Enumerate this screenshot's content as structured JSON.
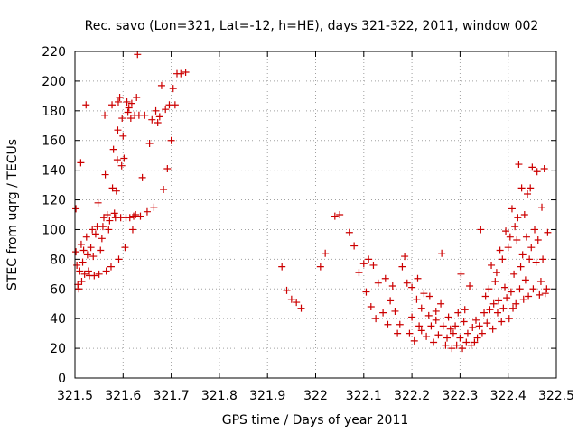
{
  "chart_data": {
    "type": "scatter",
    "title": "Rec. savo (Lon=321, Lat=-12, h=HE), days 321-322, 2011, window 002",
    "xlabel": "GPS time / Days of year 2011",
    "ylabel": "STEC from uqrg / TECUs",
    "xlim": [
      321.5,
      322.5
    ],
    "ylim": [
      0,
      220
    ],
    "grid": true,
    "marker": "+",
    "marker_color": "#cc0000",
    "x_ticks": [
      {
        "value": 321.5,
        "label": "321.5"
      },
      {
        "value": 321.6,
        "label": "321.6"
      },
      {
        "value": 321.7,
        "label": "321.7"
      },
      {
        "value": 321.8,
        "label": "321.8"
      },
      {
        "value": 321.9,
        "label": "321.9"
      },
      {
        "value": 322.0,
        "label": "322"
      },
      {
        "value": 322.1,
        "label": "322.1"
      },
      {
        "value": 322.2,
        "label": "322.2"
      },
      {
        "value": 322.3,
        "label": "322.3"
      },
      {
        "value": 322.4,
        "label": "322.4"
      },
      {
        "value": 322.5,
        "label": "322.5"
      }
    ],
    "y_ticks": [
      {
        "value": 0,
        "label": "0"
      },
      {
        "value": 20,
        "label": "20"
      },
      {
        "value": 40,
        "label": "40"
      },
      {
        "value": 60,
        "label": "60"
      },
      {
        "value": 80,
        "label": "80"
      },
      {
        "value": 100,
        "label": "100"
      },
      {
        "value": 120,
        "label": "120"
      },
      {
        "value": 140,
        "label": "140"
      },
      {
        "value": 160,
        "label": "160"
      },
      {
        "value": 180,
        "label": "180"
      },
      {
        "value": 200,
        "label": "200"
      },
      {
        "value": 220,
        "label": "220"
      }
    ],
    "points": [
      [
        321.502,
        114
      ],
      [
        321.502,
        85
      ],
      [
        321.504,
        76
      ],
      [
        321.506,
        63
      ],
      [
        321.508,
        60
      ],
      [
        321.51,
        72
      ],
      [
        321.512,
        145
      ],
      [
        321.513,
        90
      ],
      [
        321.514,
        65
      ],
      [
        321.516,
        78
      ],
      [
        321.518,
        86
      ],
      [
        321.52,
        70
      ],
      [
        321.523,
        184
      ],
      [
        321.524,
        95
      ],
      [
        321.526,
        83
      ],
      [
        321.528,
        72
      ],
      [
        321.53,
        69
      ],
      [
        321.533,
        88
      ],
      [
        321.536,
        100
      ],
      [
        321.538,
        82
      ],
      [
        321.54,
        69
      ],
      [
        321.543,
        97
      ],
      [
        321.546,
        102
      ],
      [
        321.548,
        118
      ],
      [
        321.55,
        70
      ],
      [
        321.553,
        86
      ],
      [
        321.556,
        94
      ],
      [
        321.558,
        102
      ],
      [
        321.56,
        108
      ],
      [
        321.562,
        177
      ],
      [
        321.563,
        137
      ],
      [
        321.565,
        72
      ],
      [
        321.567,
        110
      ],
      [
        321.57,
        100
      ],
      [
        321.572,
        106
      ],
      [
        321.575,
        75
      ],
      [
        321.577,
        184
      ],
      [
        321.578,
        128
      ],
      [
        321.58,
        154
      ],
      [
        321.582,
        111
      ],
      [
        321.584,
        108
      ],
      [
        321.586,
        126
      ],
      [
        321.588,
        147
      ],
      [
        321.589,
        167
      ],
      [
        321.59,
        186
      ],
      [
        321.591,
        80
      ],
      [
        321.593,
        189
      ],
      [
        321.595,
        108
      ],
      [
        321.597,
        143
      ],
      [
        321.598,
        175
      ],
      [
        321.6,
        163
      ],
      [
        321.602,
        148
      ],
      [
        321.604,
        88
      ],
      [
        321.606,
        108
      ],
      [
        321.608,
        186
      ],
      [
        321.61,
        179
      ],
      [
        321.612,
        182
      ],
      [
        321.614,
        108
      ],
      [
        321.616,
        175
      ],
      [
        321.618,
        185
      ],
      [
        321.62,
        100
      ],
      [
        321.622,
        109
      ],
      [
        321.624,
        177
      ],
      [
        321.626,
        110
      ],
      [
        321.628,
        189
      ],
      [
        321.63,
        218
      ],
      [
        321.633,
        177
      ],
      [
        321.636,
        109
      ],
      [
        321.64,
        135
      ],
      [
        321.645,
        177
      ],
      [
        321.65,
        112
      ],
      [
        321.655,
        158
      ],
      [
        321.66,
        174
      ],
      [
        321.664,
        115
      ],
      [
        321.668,
        180
      ],
      [
        321.672,
        172
      ],
      [
        321.676,
        176
      ],
      [
        321.68,
        197
      ],
      [
        321.684,
        127
      ],
      [
        321.688,
        181
      ],
      [
        321.692,
        141
      ],
      [
        321.696,
        184
      ],
      [
        321.7,
        160
      ],
      [
        321.704,
        195
      ],
      [
        321.708,
        184
      ],
      [
        321.712,
        205
      ],
      [
        321.72,
        205
      ],
      [
        321.73,
        206
      ],
      [
        321.93,
        75
      ],
      [
        321.94,
        59
      ],
      [
        321.95,
        53
      ],
      [
        321.96,
        51
      ],
      [
        321.97,
        47
      ],
      [
        322.01,
        75
      ],
      [
        322.02,
        84
      ],
      [
        322.04,
        109
      ],
      [
        322.05,
        110
      ],
      [
        322.07,
        98
      ],
      [
        322.08,
        89
      ],
      [
        322.09,
        71
      ],
      [
        322.1,
        77
      ],
      [
        322.105,
        58
      ],
      [
        322.11,
        80
      ],
      [
        322.115,
        48
      ],
      [
        322.12,
        76
      ],
      [
        322.125,
        40
      ],
      [
        322.13,
        64
      ],
      [
        322.14,
        44
      ],
      [
        322.145,
        67
      ],
      [
        322.15,
        36
      ],
      [
        322.155,
        52
      ],
      [
        322.16,
        62
      ],
      [
        322.165,
        45
      ],
      [
        322.17,
        30
      ],
      [
        322.175,
        36
      ],
      [
        322.18,
        75
      ],
      [
        322.185,
        82
      ],
      [
        322.19,
        64
      ],
      [
        322.195,
        30
      ],
      [
        322.2,
        41
      ],
      [
        322.2,
        61
      ],
      [
        322.205,
        25
      ],
      [
        322.21,
        53
      ],
      [
        322.212,
        67
      ],
      [
        322.215,
        35
      ],
      [
        322.22,
        47
      ],
      [
        322.22,
        32
      ],
      [
        322.225,
        57
      ],
      [
        322.23,
        28
      ],
      [
        322.235,
        42
      ],
      [
        322.237,
        55
      ],
      [
        322.24,
        35
      ],
      [
        322.245,
        24
      ],
      [
        322.25,
        39
      ],
      [
        322.25,
        45
      ],
      [
        322.255,
        29
      ],
      [
        322.26,
        50
      ],
      [
        322.262,
        84
      ],
      [
        322.265,
        35
      ],
      [
        322.27,
        22
      ],
      [
        322.273,
        27
      ],
      [
        322.276,
        41
      ],
      [
        322.28,
        33
      ],
      [
        322.283,
        20
      ],
      [
        322.286,
        30
      ],
      [
        322.29,
        35
      ],
      [
        322.293,
        22
      ],
      [
        322.296,
        44
      ],
      [
        322.3,
        27
      ],
      [
        322.302,
        70
      ],
      [
        322.305,
        20
      ],
      [
        322.308,
        38
      ],
      [
        322.31,
        46
      ],
      [
        322.313,
        24
      ],
      [
        322.316,
        30
      ],
      [
        322.32,
        62
      ],
      [
        322.323,
        22
      ],
      [
        322.326,
        34
      ],
      [
        322.33,
        24
      ],
      [
        322.333,
        39
      ],
      [
        322.336,
        27
      ],
      [
        322.34,
        35
      ],
      [
        322.343,
        100
      ],
      [
        322.346,
        30
      ],
      [
        322.35,
        44
      ],
      [
        322.353,
        55
      ],
      [
        322.356,
        37
      ],
      [
        322.36,
        60
      ],
      [
        322.362,
        46
      ],
      [
        322.365,
        76
      ],
      [
        322.368,
        33
      ],
      [
        322.37,
        50
      ],
      [
        322.373,
        65
      ],
      [
        322.376,
        71
      ],
      [
        322.378,
        44
      ],
      [
        322.38,
        52
      ],
      [
        322.383,
        86
      ],
      [
        322.386,
        38
      ],
      [
        322.388,
        80
      ],
      [
        322.39,
        47
      ],
      [
        322.393,
        61
      ],
      [
        322.395,
        99
      ],
      [
        322.397,
        54
      ],
      [
        322.4,
        88
      ],
      [
        322.402,
        40
      ],
      [
        322.404,
        95
      ],
      [
        322.406,
        58
      ],
      [
        322.408,
        114
      ],
      [
        322.41,
        47
      ],
      [
        322.412,
        70
      ],
      [
        322.414,
        102
      ],
      [
        322.416,
        50
      ],
      [
        322.418,
        93
      ],
      [
        322.42,
        108
      ],
      [
        322.422,
        144
      ],
      [
        322.424,
        60
      ],
      [
        322.426,
        75
      ],
      [
        322.428,
        128
      ],
      [
        322.43,
        83
      ],
      [
        322.432,
        53
      ],
      [
        322.434,
        110
      ],
      [
        322.436,
        66
      ],
      [
        322.438,
        95
      ],
      [
        322.44,
        124
      ],
      [
        322.442,
        55
      ],
      [
        322.444,
        80
      ],
      [
        322.446,
        128
      ],
      [
        322.448,
        88
      ],
      [
        322.45,
        142
      ],
      [
        322.452,
        60
      ],
      [
        322.455,
        100
      ],
      [
        322.458,
        78
      ],
      [
        322.46,
        139
      ],
      [
        322.462,
        93
      ],
      [
        322.465,
        56
      ],
      [
        322.468,
        65
      ],
      [
        322.47,
        115
      ],
      [
        322.472,
        80
      ],
      [
        322.475,
        141
      ],
      [
        322.477,
        57
      ],
      [
        322.48,
        60
      ],
      [
        322.482,
        98
      ]
    ]
  }
}
